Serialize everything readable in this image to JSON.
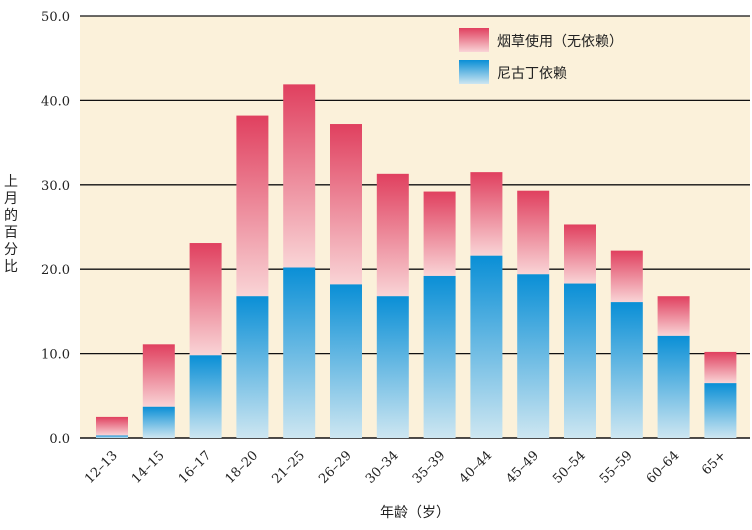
{
  "chart_data": {
    "type": "bar",
    "stacked": true,
    "xlabel": "年龄（岁）",
    "ylabel": "上月的百分比",
    "ylim": [
      0,
      50
    ],
    "yticks": [
      "0.0",
      "10.0",
      "20.0",
      "30.0",
      "40.0",
      "50.0"
    ],
    "grid": "horizontal",
    "legend_position": "top-right",
    "categories": [
      "12–13",
      "14–15",
      "16–17",
      "18–20",
      "21–25",
      "26–29",
      "30–34",
      "35–39",
      "40–44",
      "45–49",
      "50–54",
      "55–59",
      "60–64",
      "65+"
    ],
    "series": [
      {
        "name": "尼古丁依赖",
        "values": [
          0.3,
          3.7,
          9.8,
          16.8,
          20.2,
          18.2,
          16.8,
          19.2,
          21.6,
          19.4,
          18.3,
          16.1,
          12.1,
          6.5
        ],
        "color": "#1a9ad9"
      },
      {
        "name": "烟草使用（无依赖）",
        "values": [
          2.2,
          7.4,
          13.3,
          21.4,
          21.7,
          19.0,
          14.5,
          10.0,
          9.9,
          9.9,
          7.0,
          6.1,
          4.7,
          3.7
        ],
        "color": "#e0405f"
      }
    ]
  },
  "colors": {
    "plot_background": "#fbf1da",
    "gridline": "#111111",
    "blue_top": "#0a8fd6",
    "blue_bottom": "#cde6f1",
    "red_top": "#e0405f",
    "red_bottom": "#f9d4d6"
  }
}
